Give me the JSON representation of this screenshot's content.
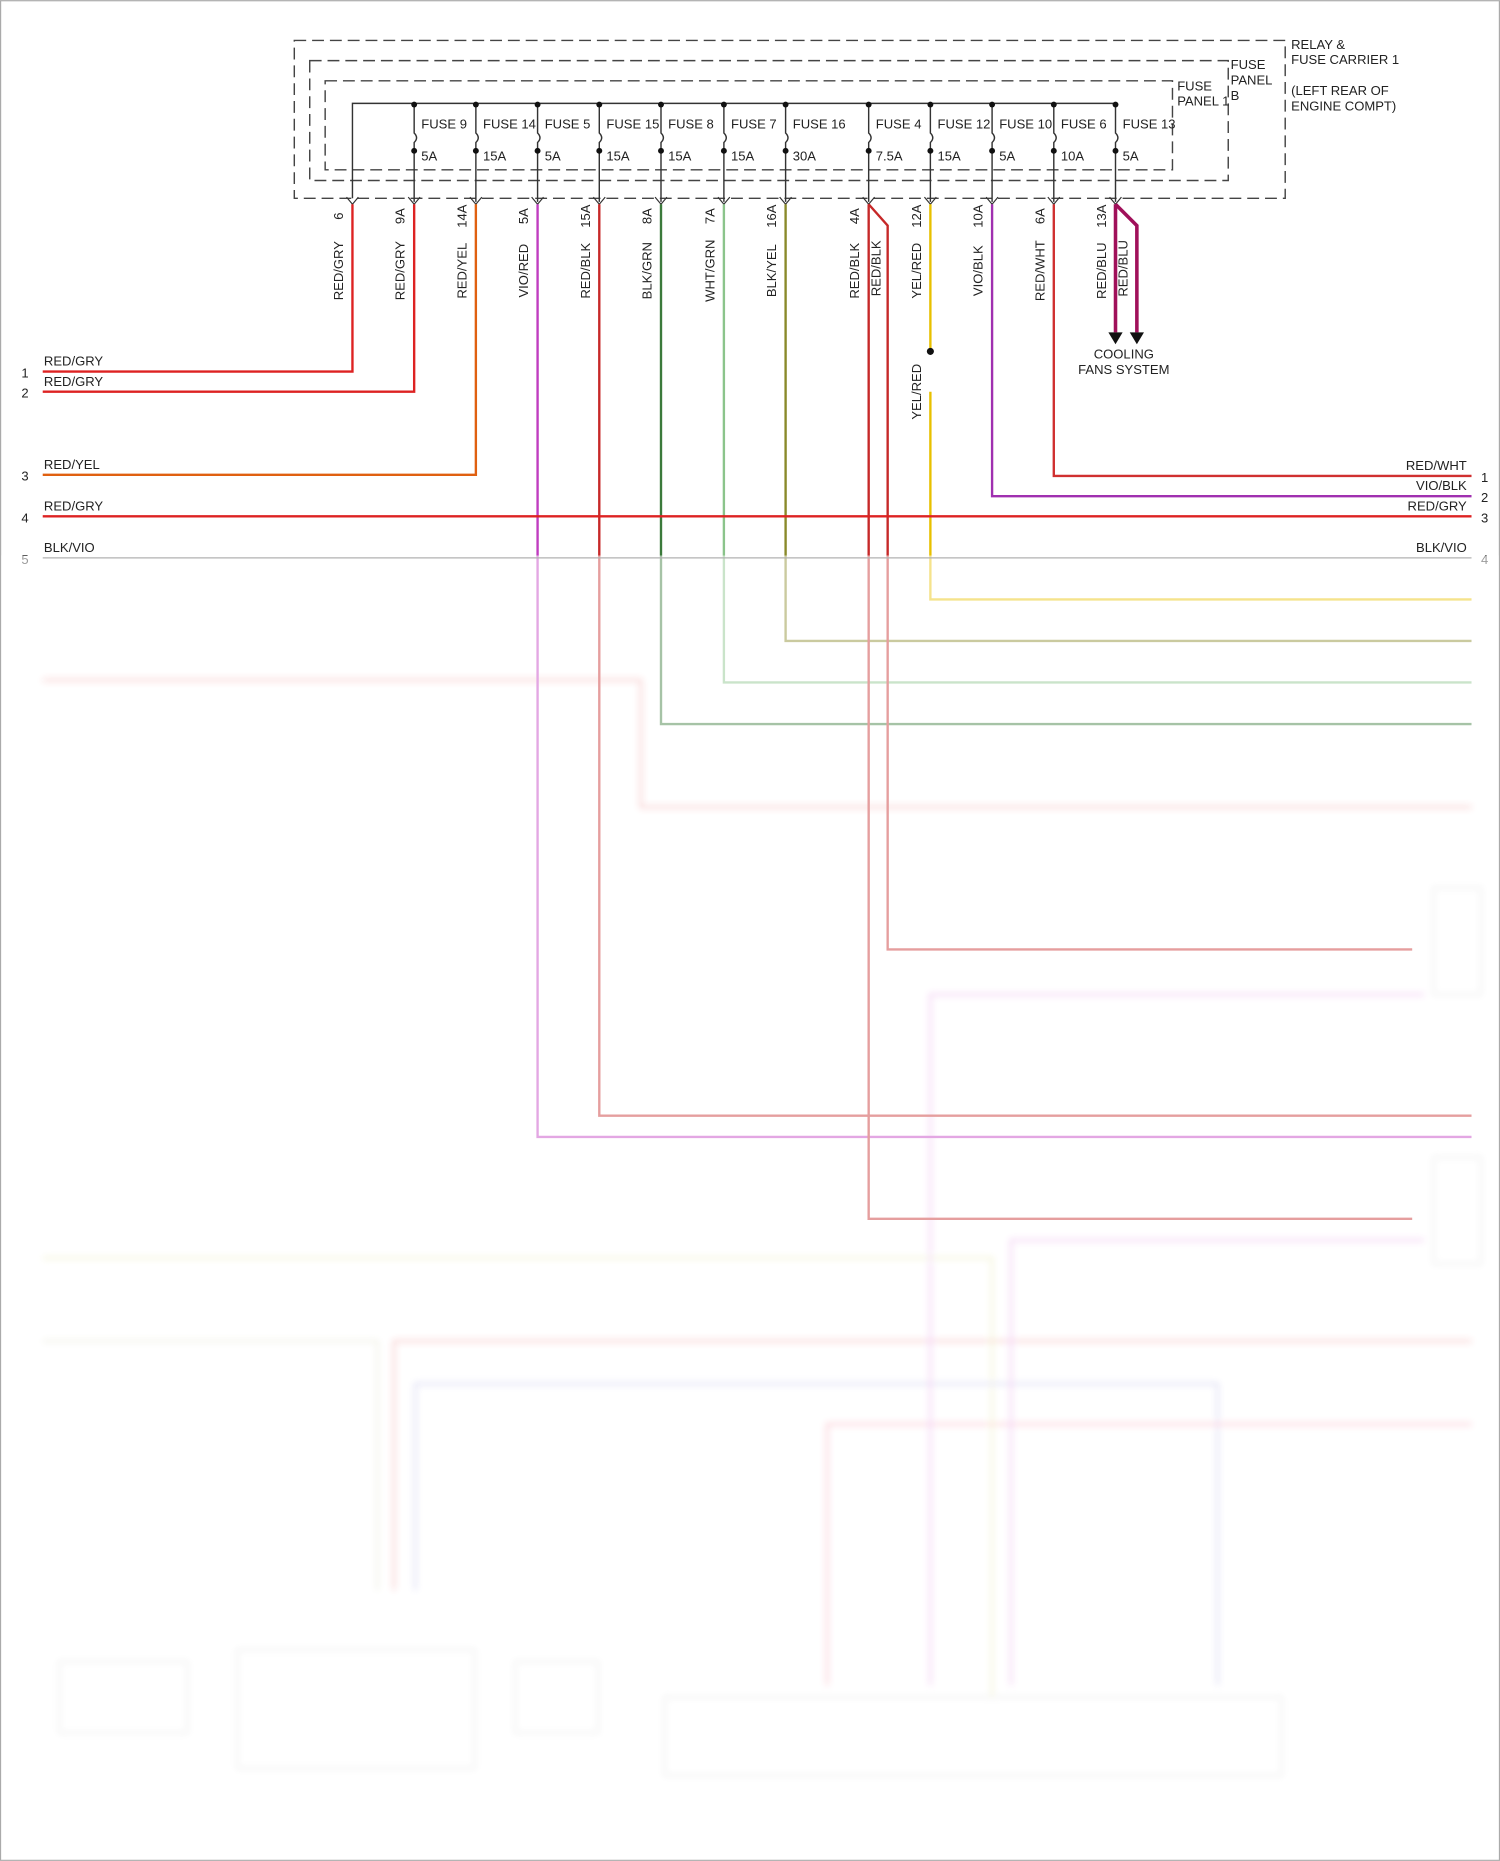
{
  "relay_box": {
    "lines": [
      "RELAY &",
      "FUSE CARRIER 1",
      "(LEFT REAR OF",
      "ENGINE COMPT)"
    ]
  },
  "panel_b": {
    "lines": [
      "FUSE",
      "PANEL",
      "B"
    ]
  },
  "panel_1": {
    "lines": [
      "FUSE",
      "PANEL 1"
    ]
  },
  "fuses": [
    {
      "pin": "6",
      "wire": "RED/GRY",
      "color": "#d22"
    },
    {
      "label": "FUSE 9",
      "rating": "5A",
      "pin": "9A",
      "wire": "RED/GRY",
      "color": "#d22"
    },
    {
      "label": "FUSE 14",
      "rating": "15A",
      "pin": "14A",
      "wire": "RED/YEL",
      "color": "#e06010"
    },
    {
      "label": "FUSE 5",
      "rating": "5A",
      "pin": "5A",
      "wire": "VIO/RED",
      "color": "#c03cc0"
    },
    {
      "label": "FUSE 15",
      "rating": "15A",
      "pin": "15A",
      "wire": "RED/BLK",
      "color": "#c62828"
    },
    {
      "label": "FUSE 8",
      "rating": "15A",
      "pin": "8A",
      "wire": "BLK/GRN",
      "color": "#3b7a3b"
    },
    {
      "label": "FUSE 7",
      "rating": "15A",
      "pin": "7A",
      "wire": "WHT/GRN",
      "color": "#8bc48b"
    },
    {
      "label": "FUSE 16",
      "rating": "30A",
      "pin": "16A",
      "wire": "BLK/YEL",
      "color": "#8a8a2a"
    },
    {
      "label": "FUSE 4",
      "rating": "7.5A",
      "pin": "4A",
      "wire": "RED/BLK",
      "wire2": "RED/BLK",
      "color": "#c62828"
    },
    {
      "label": "FUSE 12",
      "rating": "15A",
      "pin": "12A",
      "wire": "YEL/RED",
      "color": "#e8c000"
    },
    {
      "label": "FUSE 10",
      "rating": "5A",
      "pin": "10A",
      "wire": "VIO/BLK",
      "color": "#a030b0"
    },
    {
      "label": "FUSE 6",
      "rating": "10A",
      "pin": "6A",
      "wire": "RED/WHT",
      "color": "#d03030"
    },
    {
      "label": "FUSE 13",
      "rating": "5A",
      "pin": "13A",
      "wire": "RED/BLU",
      "wire2": "RED/BLU",
      "color": "#a0105a"
    }
  ],
  "cooling_fans": [
    "COOLING",
    "FANS SYSTEM"
  ],
  "yel_red_lower": "YEL/RED",
  "left_connectors": [
    {
      "pin": "1",
      "wire": "RED/GRY"
    },
    {
      "pin": "2",
      "wire": "RED/GRY"
    },
    {
      "pin": "3",
      "wire": "RED/YEL"
    },
    {
      "pin": "4",
      "wire": "RED/GRY"
    },
    {
      "pin": "5",
      "wire": "BLK/VIO"
    }
  ],
  "right_connectors": [
    {
      "pin": "1",
      "wire": "RED/WHT"
    },
    {
      "pin": "2",
      "wire": "VIO/BLK"
    },
    {
      "pin": "3",
      "wire": "RED/GRY"
    },
    {
      "pin": "4",
      "wire": "BLK/VIO"
    }
  ]
}
